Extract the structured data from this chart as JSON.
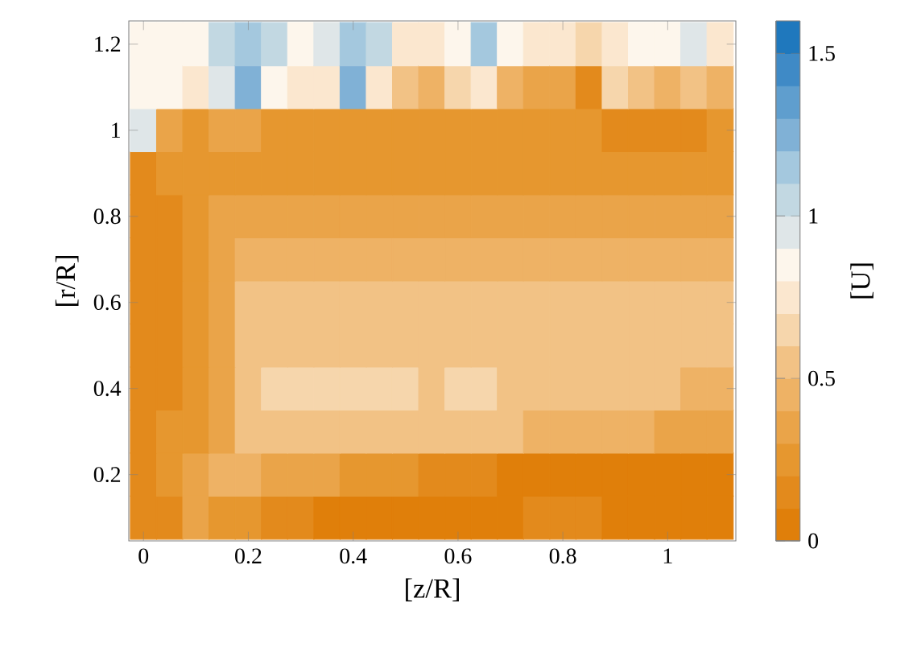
{
  "chart_data": {
    "type": "heatmap",
    "xlabel": "[z/R]",
    "ylabel": "[r/R]",
    "clabel": "[U]",
    "categories": [
      "0",
      null,
      null,
      null,
      "0.2",
      null,
      null,
      null,
      "0.4",
      null,
      null,
      null,
      "0.6",
      null,
      null,
      null,
      "0.8",
      null,
      null,
      null,
      "1",
      null,
      null
    ],
    "y_categories": [
      "1.2",
      null,
      "1",
      null,
      "0.8",
      null,
      "0.6",
      null,
      "0.4",
      null,
      "0.2",
      null
    ],
    "clim": [
      0,
      1.6
    ],
    "cticks": [
      0,
      0.5,
      1,
      1.5
    ],
    "cells": [
      [
        0.85,
        0.85,
        0.85,
        1.05,
        1.15,
        1.05,
        0.85,
        0.95,
        1.15,
        1.05,
        0.75,
        0.75,
        0.85,
        1.15,
        0.85,
        0.75,
        0.75,
        0.65,
        0.75,
        0.85,
        0.85,
        0.95,
        0.75
      ],
      [
        0.85,
        0.85,
        0.75,
        0.95,
        1.25,
        0.85,
        0.75,
        0.75,
        1.25,
        0.75,
        0.55,
        0.45,
        0.65,
        0.75,
        0.45,
        0.35,
        0.35,
        0.15,
        0.65,
        0.55,
        0.45,
        0.55,
        0.45
      ],
      [
        0.95,
        0.35,
        0.25,
        0.35,
        0.35,
        0.25,
        0.25,
        0.25,
        0.25,
        0.25,
        0.25,
        0.25,
        0.25,
        0.25,
        0.25,
        0.25,
        0.25,
        0.25,
        0.15,
        0.15,
        0.15,
        0.15,
        0.25
      ],
      [
        0.15,
        0.25,
        0.25,
        0.25,
        0.25,
        0.25,
        0.25,
        0.25,
        0.25,
        0.25,
        0.25,
        0.25,
        0.25,
        0.25,
        0.25,
        0.25,
        0.25,
        0.25,
        0.25,
        0.25,
        0.25,
        0.25,
        0.25
      ],
      [
        0.15,
        0.15,
        0.25,
        0.35,
        0.35,
        0.35,
        0.35,
        0.35,
        0.35,
        0.35,
        0.35,
        0.35,
        0.35,
        0.35,
        0.35,
        0.35,
        0.35,
        0.35,
        0.35,
        0.35,
        0.35,
        0.35,
        0.35
      ],
      [
        0.15,
        0.15,
        0.25,
        0.35,
        0.45,
        0.45,
        0.45,
        0.45,
        0.45,
        0.45,
        0.45,
        0.45,
        0.45,
        0.45,
        0.45,
        0.45,
        0.45,
        0.45,
        0.45,
        0.45,
        0.45,
        0.45,
        0.45
      ],
      [
        0.15,
        0.15,
        0.25,
        0.35,
        0.55,
        0.55,
        0.55,
        0.55,
        0.55,
        0.55,
        0.55,
        0.55,
        0.55,
        0.55,
        0.55,
        0.55,
        0.55,
        0.55,
        0.55,
        0.55,
        0.55,
        0.55,
        0.55
      ],
      [
        0.15,
        0.15,
        0.25,
        0.35,
        0.55,
        0.55,
        0.55,
        0.55,
        0.55,
        0.55,
        0.55,
        0.55,
        0.55,
        0.55,
        0.55,
        0.55,
        0.55,
        0.55,
        0.55,
        0.55,
        0.55,
        0.55,
        0.55
      ],
      [
        0.15,
        0.15,
        0.25,
        0.35,
        0.55,
        0.65,
        0.65,
        0.65,
        0.65,
        0.65,
        0.65,
        0.55,
        0.65,
        0.65,
        0.55,
        0.55,
        0.55,
        0.55,
        0.55,
        0.55,
        0.55,
        0.45,
        0.45
      ],
      [
        0.15,
        0.25,
        0.25,
        0.35,
        0.55,
        0.55,
        0.55,
        0.55,
        0.55,
        0.55,
        0.55,
        0.55,
        0.55,
        0.55,
        0.55,
        0.45,
        0.45,
        0.45,
        0.45,
        0.45,
        0.35,
        0.35,
        0.35
      ],
      [
        0.15,
        0.25,
        0.35,
        0.45,
        0.45,
        0.35,
        0.35,
        0.35,
        0.25,
        0.25,
        0.25,
        0.15,
        0.15,
        0.15,
        0.05,
        0.05,
        0.05,
        0.05,
        0.05,
        0.05,
        0.05,
        0.05,
        0.05
      ],
      [
        0.15,
        0.15,
        0.35,
        0.25,
        0.25,
        0.15,
        0.15,
        0.05,
        0.05,
        0.05,
        0.05,
        0.05,
        0.05,
        0.05,
        0.05,
        0.15,
        0.15,
        0.15,
        0.05,
        0.05,
        0.05,
        0.05,
        0.05
      ]
    ]
  }
}
